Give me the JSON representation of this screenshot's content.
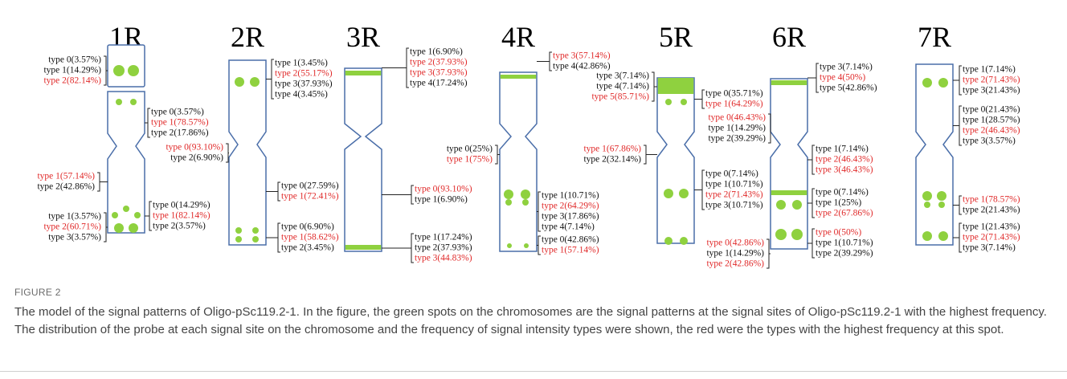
{
  "figure": {
    "chromosomes": [
      {
        "name": "1R",
        "groups": [
          [
            {
              "text": "type 0(3.57%)",
              "color": "#111111"
            },
            {
              "text": "type 1(14.29%)",
              "color": "#111111"
            },
            {
              "text": "type 2(82.14%)",
              "color": "#e02a2a"
            }
          ],
          [
            {
              "text": "type 0(3.57%)",
              "color": "#111111"
            },
            {
              "text": "type 1(78.57%)",
              "color": "#e02a2a"
            },
            {
              "text": "type 2(17.86%)",
              "color": "#111111"
            }
          ],
          [
            {
              "text": "type 1(57.14%)",
              "color": "#e02a2a"
            },
            {
              "text": "type 2(42.86%)",
              "color": "#111111"
            }
          ],
          [
            {
              "text": "type 1(3.57%)",
              "color": "#111111"
            },
            {
              "text": "type 2(60.71%)",
              "color": "#e02a2a"
            },
            {
              "text": "type 3(3.57%)",
              "color": "#111111"
            }
          ],
          [
            {
              "text": "type 0(14.29%)",
              "color": "#111111"
            },
            {
              "text": "type 1(82.14%)",
              "color": "#e02a2a"
            },
            {
              "text": "type 2(3.57%)",
              "color": "#111111"
            }
          ]
        ]
      },
      {
        "name": "2R",
        "groups": [
          [
            {
              "text": "type 1(3.45%)",
              "color": "#111111"
            },
            {
              "text": "type 2(55.17%)",
              "color": "#e02a2a"
            },
            {
              "text": "type 3(37.93%)",
              "color": "#111111"
            },
            {
              "text": "type 4(3.45%)",
              "color": "#111111"
            }
          ],
          [
            {
              "text": "type 0(93.10%)",
              "color": "#e02a2a"
            },
            {
              "text": "type 2(6.90%)",
              "color": "#111111"
            }
          ],
          [
            {
              "text": "type 0(27.59%)",
              "color": "#111111"
            },
            {
              "text": "type 1(72.41%)",
              "color": "#e02a2a"
            }
          ],
          [
            {
              "text": "type 0(6.90%)",
              "color": "#111111"
            },
            {
              "text": "type 1(58.62%)",
              "color": "#e02a2a"
            },
            {
              "text": "type 2(3.45%)",
              "color": "#111111"
            }
          ]
        ]
      },
      {
        "name": "3R",
        "groups": [
          [
            {
              "text": "type 1(6.90%)",
              "color": "#111111"
            },
            {
              "text": "type 2(37.93%)",
              "color": "#e02a2a"
            },
            {
              "text": "type 3(37.93%)",
              "color": "#e02a2a"
            },
            {
              "text": "type 4(17.24%)",
              "color": "#111111"
            }
          ],
          [
            {
              "text": "type 0(93.10%)",
              "color": "#e02a2a"
            },
            {
              "text": "type 1(6.90%)",
              "color": "#111111"
            }
          ],
          [
            {
              "text": "type 1(17.24%)",
              "color": "#111111"
            },
            {
              "text": "type 2(37.93%)",
              "color": "#111111"
            },
            {
              "text": "type 3(44.83%)",
              "color": "#e02a2a"
            }
          ]
        ]
      },
      {
        "name": "4R",
        "groups": [
          [
            {
              "text": "type 3(57.14%)",
              "color": "#e02a2a"
            },
            {
              "text": "type 4(42.86%)",
              "color": "#111111"
            }
          ],
          [
            {
              "text": "type 0(25%)",
              "color": "#111111"
            },
            {
              "text": "type 1(75%)",
              "color": "#e02a2a"
            }
          ],
          [
            {
              "text": "type 1(10.71%)",
              "color": "#111111"
            },
            {
              "text": "type 2(64.29%)",
              "color": "#e02a2a"
            },
            {
              "text": "type 3(17.86%)",
              "color": "#111111"
            },
            {
              "text": "type 4(7.14%)",
              "color": "#111111"
            }
          ],
          [
            {
              "text": "type 0(42.86%)",
              "color": "#111111"
            },
            {
              "text": "type 1(57.14%)",
              "color": "#e02a2a"
            }
          ]
        ]
      },
      {
        "name": "5R",
        "groups": [
          [
            {
              "text": "type 3(7.14%)",
              "color": "#111111"
            },
            {
              "text": "type 4(7.14%)",
              "color": "#111111"
            },
            {
              "text": "type 5(85.71%)",
              "color": "#e02a2a"
            }
          ],
          [
            {
              "text": "type 0(35.71%)",
              "color": "#111111"
            },
            {
              "text": "type 1(64.29%)",
              "color": "#e02a2a"
            }
          ],
          [
            {
              "text": "type 1(67.86%)",
              "color": "#e02a2a"
            },
            {
              "text": "type 2(32.14%)",
              "color": "#111111"
            }
          ],
          [
            {
              "text": "type 0(7.14%)",
              "color": "#111111"
            },
            {
              "text": "type 1(10.71%)",
              "color": "#111111"
            },
            {
              "text": "type 2(71.43%)",
              "color": "#e02a2a"
            },
            {
              "text": "type 3(10.71%)",
              "color": "#111111"
            }
          ]
        ]
      },
      {
        "name": "6R",
        "groups": [
          [
            {
              "text": "type 3(7.14%)",
              "color": "#111111"
            },
            {
              "text": "type 4(50%)",
              "color": "#e02a2a"
            },
            {
              "text": "type 5(42.86%)",
              "color": "#111111"
            }
          ],
          [
            {
              "text": "type 0(46.43%)",
              "color": "#e02a2a"
            },
            {
              "text": "type 1(14.29%)",
              "color": "#111111"
            },
            {
              "text": "type 2(39.29%)",
              "color": "#111111"
            }
          ],
          [
            {
              "text": "type 1(7.14%)",
              "color": "#111111"
            },
            {
              "text": "type 2(46.43%)",
              "color": "#e02a2a"
            },
            {
              "text": "type 3(46.43%)",
              "color": "#e02a2a"
            }
          ],
          [
            {
              "text": "type 0(7.14%)",
              "color": "#111111"
            },
            {
              "text": "type 1(25%)",
              "color": "#111111"
            },
            {
              "text": "type 2(67.86%)",
              "color": "#e02a2a"
            }
          ],
          [
            {
              "text": "type 0(42.86%)",
              "color": "#e02a2a"
            },
            {
              "text": "type 1(14.29%)",
              "color": "#111111"
            },
            {
              "text": "type 2(42.86%)",
              "color": "#e02a2a"
            }
          ],
          [
            {
              "text": "type 0(50%)",
              "color": "#e02a2a"
            },
            {
              "text": "type 1(10.71%)",
              "color": "#111111"
            },
            {
              "text": "type 2(39.29%)",
              "color": "#111111"
            }
          ]
        ]
      },
      {
        "name": "7R",
        "groups": [
          [
            {
              "text": "type 1(7.14%)",
              "color": "#111111"
            },
            {
              "text": "type 2(71.43%)",
              "color": "#e02a2a"
            },
            {
              "text": "type 3(21.43%)",
              "color": "#111111"
            }
          ],
          [
            {
              "text": "type 0(21.43%)",
              "color": "#111111"
            },
            {
              "text": "type 1(28.57%)",
              "color": "#111111"
            },
            {
              "text": "type 2(46.43%)",
              "color": "#e02a2a"
            },
            {
              "text": "type 3(3.57%)",
              "color": "#111111"
            }
          ],
          [
            {
              "text": "type 1(78.57%)",
              "color": "#e02a2a"
            },
            {
              "text": "type 2(21.43%)",
              "color": "#111111"
            }
          ],
          [
            {
              "text": "type 1(21.43%)",
              "color": "#111111"
            },
            {
              "text": "type 2(71.43%)",
              "color": "#e02a2a"
            },
            {
              "text": "type 3(7.14%)",
              "color": "#111111"
            }
          ]
        ]
      }
    ],
    "caption": {
      "label": "FIGURE 2",
      "text": "The model of the signal patterns of Oligo-pSc119.2-1. In the figure, the green spots on the chromosomes are the signal patterns at the signal sites of Oligo-pSc119.2-1 with the highest frequency. The distribution of the probe at each signal site on the chromosome and the frequency of signal intensity types were shown, the red were the types with the highest frequency at this spot."
    }
  }
}
